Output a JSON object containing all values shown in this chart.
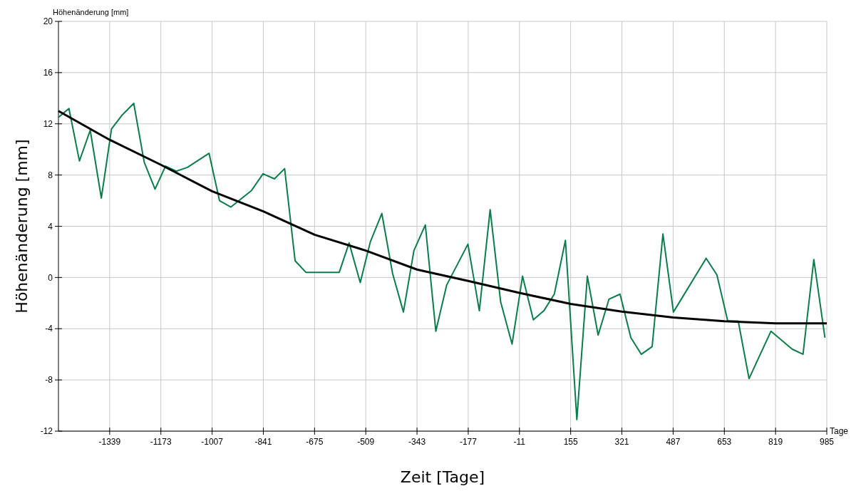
{
  "chart_data": {
    "type": "line",
    "xlabel": "Zeit [Tage]",
    "ylabel": "Höhenänderung [mm]",
    "annotations": [
      "Höhenänderung [mm]",
      "Tage"
    ],
    "xlim": [
      -1505,
      985
    ],
    "xticks": [
      -1339,
      -1173,
      -1007,
      -841,
      -675,
      -509,
      -343,
      -177,
      -11,
      155,
      321,
      487,
      653,
      819,
      985
    ],
    "ylim": [
      -12,
      20
    ],
    "yticks": [
      -12,
      -8,
      -4,
      0,
      4,
      8,
      12,
      16,
      20
    ],
    "grid": true,
    "line_style": "solid",
    "series": [
      {
        "color": "#0a7d4a",
        "x": [
          -1505,
          -1471,
          -1437,
          -1402,
          -1366,
          -1333,
          -1298,
          -1261,
          -1227,
          -1192,
          -1158,
          -1123,
          -1087,
          -1017,
          -983,
          -946,
          -879,
          -842,
          -805,
          -772,
          -738,
          -703,
          -595,
          -563,
          -527,
          -494,
          -457,
          -422,
          -387,
          -353,
          -316,
          -282,
          -247,
          -178,
          -141,
          -106,
          -72,
          -35,
          -1,
          34,
          68,
          102,
          138,
          175,
          209,
          244,
          279,
          315,
          350,
          384,
          419,
          454,
          488,
          594,
          629,
          664,
          698,
          733,
          804,
          873,
          908,
          943,
          979
        ],
        "values": [
          12.5,
          13.2,
          9.1,
          11.5,
          6.2,
          11.6,
          12.7,
          13.6,
          9.0,
          6.9,
          8.7,
          8.3,
          8.6,
          9.7,
          6.0,
          5.5,
          6.8,
          8.1,
          7.7,
          8.5,
          1.3,
          0.4,
          0.4,
          2.7,
          -0.4,
          2.8,
          5.0,
          0.3,
          -2.7,
          2.1,
          4.1,
          -4.2,
          -0.6,
          2.6,
          -2.6,
          5.3,
          -1.9,
          -5.2,
          0.1,
          -3.3,
          -2.6,
          -1.3,
          2.9,
          -11.1,
          0.1,
          -4.5,
          -1.7,
          -1.3,
          -4.7,
          -6.0,
          -5.4,
          3.4,
          -2.7,
          1.5,
          0.2,
          -3.4,
          -3.4,
          -7.9,
          -4.2,
          -5.6,
          -6.0,
          1.4,
          -4.7
        ]
      },
      {
        "color": "#000000",
        "x": [
          -1505,
          -1339,
          -1173,
          -1007,
          -841,
          -675,
          -509,
          -343,
          -177,
          -11,
          155,
          321,
          487,
          653,
          819,
          985
        ],
        "values": [
          13.0,
          10.75,
          8.8,
          6.73,
          5.16,
          3.34,
          2.1,
          0.62,
          -0.27,
          -1.2,
          -2.07,
          -2.66,
          -3.12,
          -3.42,
          -3.58,
          -3.58
        ]
      }
    ]
  }
}
